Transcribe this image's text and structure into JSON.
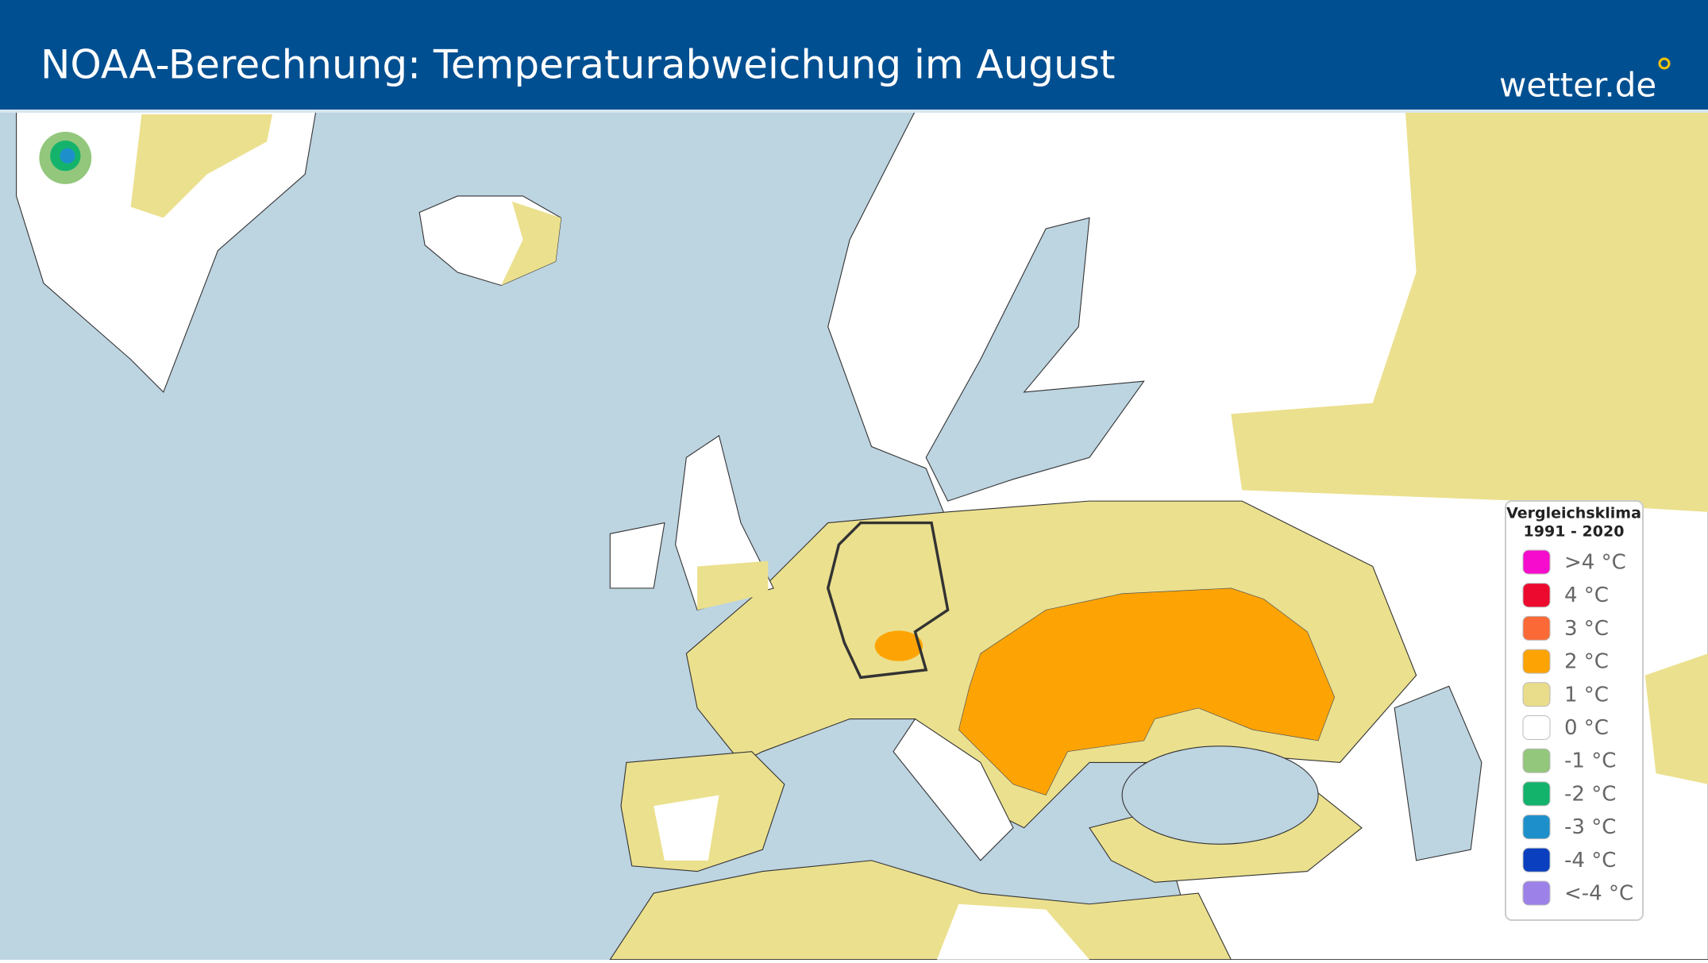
{
  "header": {
    "title": "NOAA-Berechnung: Temperaturabweichung im August",
    "logo": "wetter.de"
  },
  "legend": {
    "title_lines": [
      "Vergleichsklima",
      "1991 - 2020"
    ],
    "items": [
      {
        "label": ">4 °C",
        "color": "#f60ccc"
      },
      {
        "label": "4 °C",
        "color": "#ec0a2e"
      },
      {
        "label": "3 °C",
        "color": "#fb6a36"
      },
      {
        "label": "2 °C",
        "color": "#fda404"
      },
      {
        "label": "1 °C",
        "color": "#e9dc8a"
      },
      {
        "label": "0 °C",
        "color": "#ffffff"
      },
      {
        "label": "-1 °C",
        "color": "#93c77c"
      },
      {
        "label": "-2 °C",
        "color": "#14b36c"
      },
      {
        "label": "-3 °C",
        "color": "#1d90cb"
      },
      {
        "label": "-4 °C",
        "color": "#0a40bf"
      },
      {
        "label": "<-4 °C",
        "color": "#9c82e8"
      }
    ]
  }
}
